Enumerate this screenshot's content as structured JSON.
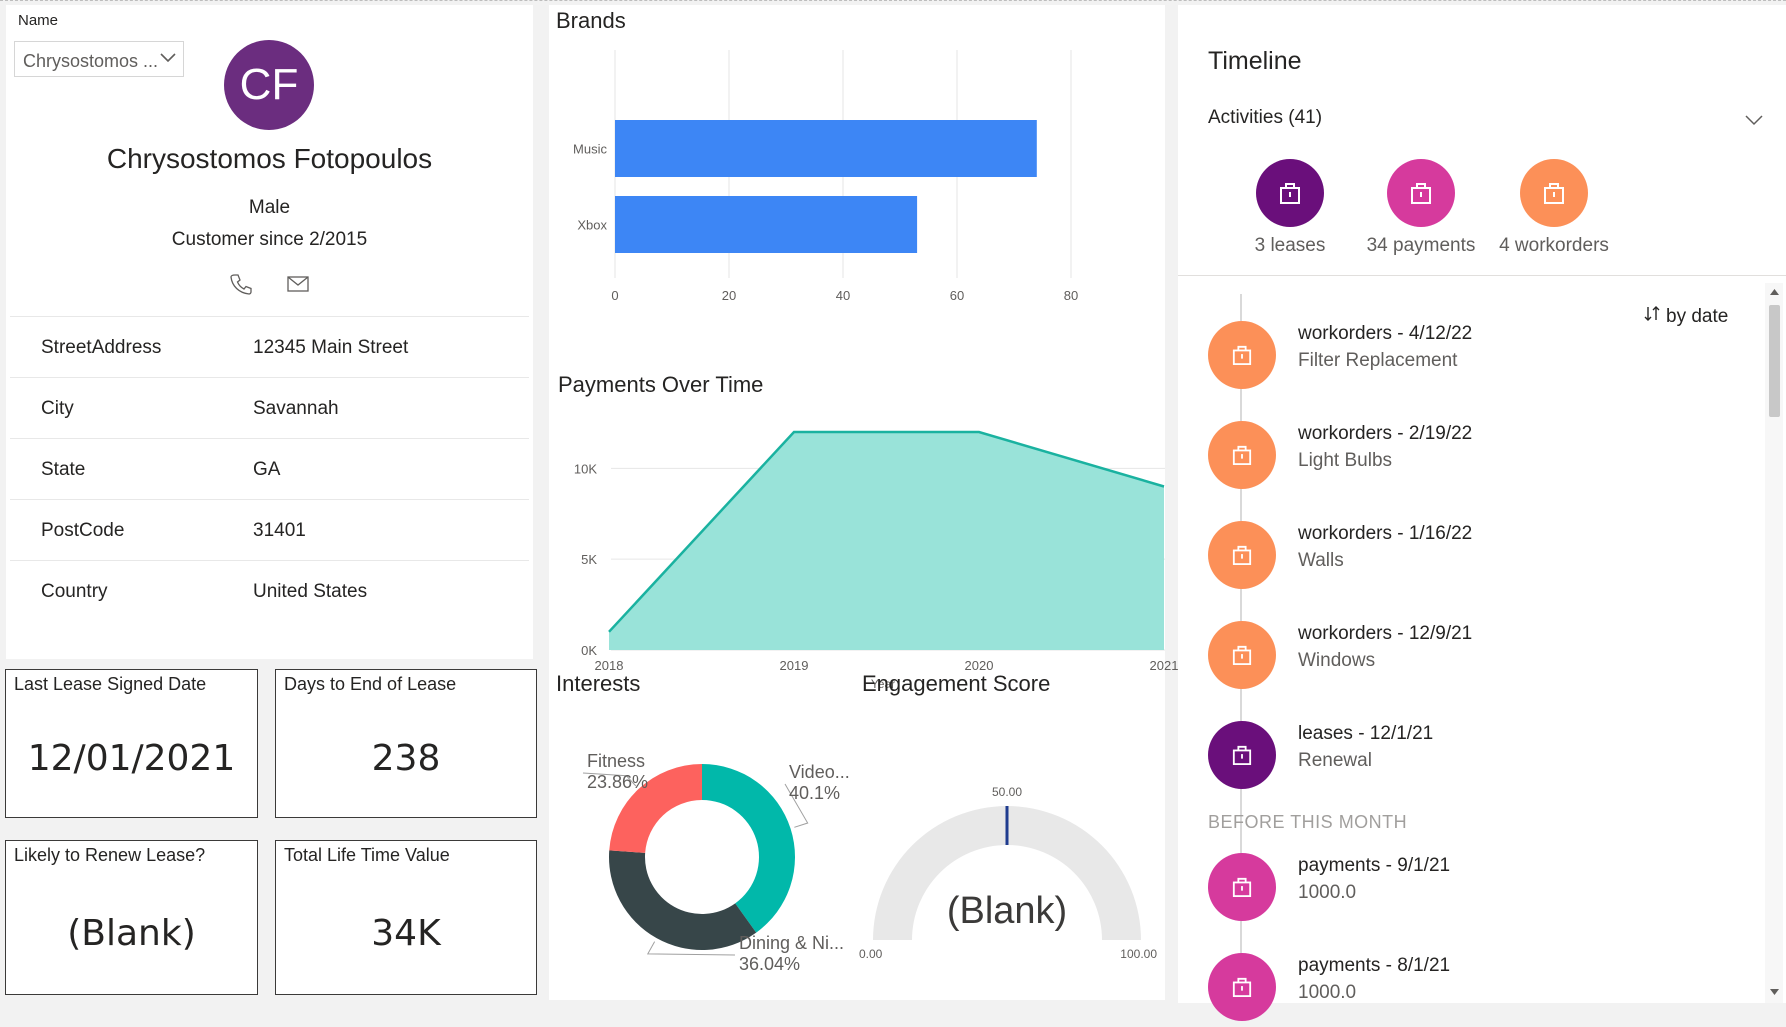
{
  "profile": {
    "slicer_title": "Name",
    "slicer_value": "Chrysostomos ...",
    "initials": "CF",
    "name": "Chrysostomos Fotopoulos",
    "gender": "Male",
    "customer_since": "Customer since 2/2015",
    "phone_icon": "phone-icon",
    "mail_icon": "mail-icon"
  },
  "address": [
    {
      "key": "StreetAddress",
      "value": "12345 Main Street"
    },
    {
      "key": "City",
      "value": "Savannah"
    },
    {
      "key": "State",
      "value": "GA"
    },
    {
      "key": "PostCode",
      "value": "31401"
    },
    {
      "key": "Country",
      "value": "United States"
    }
  ],
  "kpis": [
    {
      "label": "Last Lease Signed Date",
      "value": "12/01/2021"
    },
    {
      "label": "Days to End of Lease",
      "value": "238"
    },
    {
      "label": "Likely to Renew Lease?",
      "value": "(Blank)"
    },
    {
      "label": "Total Life Time Value",
      "value": "34K"
    }
  ],
  "brands": {
    "title": "Brands",
    "chart_data": {
      "type": "bar",
      "orientation": "horizontal",
      "categories": [
        "Music",
        "Xbox"
      ],
      "values": [
        74,
        53
      ],
      "xlim": [
        0,
        80
      ],
      "xticks": [
        "0",
        "20",
        "40",
        "60",
        "80"
      ],
      "color": "#3d86f5",
      "grid": true
    }
  },
  "payments": {
    "title": "Payments Over Time",
    "chart_data": {
      "type": "area",
      "x": [
        "2018",
        "2019",
        "2020",
        "2021"
      ],
      "values": [
        1000,
        12000,
        12000,
        9000
      ],
      "ylim": [
        0,
        12000
      ],
      "yticks": [
        "0K",
        "5K",
        "10K"
      ],
      "xlabel": "Year",
      "ylabel": "",
      "fill": "#99e3d9",
      "line": "#1ab2a0",
      "grid": true
    }
  },
  "interests": {
    "title": "Interests",
    "chart_data": {
      "type": "pie",
      "donut": true,
      "slices": [
        {
          "label": "Video...",
          "value": 40.1,
          "display": "40.1%",
          "color": "#01b8aa"
        },
        {
          "label": "Dining & Ni...",
          "value": 36.04,
          "display": "36.04%",
          "color": "#374649"
        },
        {
          "label": "Fitness",
          "value": 23.86,
          "display": "23.86%",
          "color": "#fd625e"
        }
      ]
    }
  },
  "engagement": {
    "title": "Engagement Score",
    "chart_data": {
      "type": "gauge",
      "min": 0,
      "max": 100,
      "target": 50,
      "value": null,
      "min_label": "0.00",
      "max_label": "100.00",
      "target_label": "50.00",
      "value_label": "(Blank)"
    }
  },
  "timeline": {
    "title": "Timeline",
    "activities_label": "Activities (41)",
    "categories": [
      {
        "label": "3 leases",
        "color": "#6a0f7b",
        "icon": "bag-icon"
      },
      {
        "label": "34 payments",
        "color": "#d63a9d",
        "icon": "bag-icon"
      },
      {
        "label": "4 workorders",
        "color": "#fc9058",
        "icon": "bag-icon"
      }
    ],
    "sort_label": "by date",
    "sort_icon": "sort-icon",
    "items": [
      {
        "title": "workorders - 4/12/22",
        "subtitle": "Filter Replacement",
        "type": "workorder"
      },
      {
        "title": "workorders - 2/19/22",
        "subtitle": "Light Bulbs",
        "type": "workorder"
      },
      {
        "title": "workorders - 1/16/22",
        "subtitle": "Walls",
        "type": "workorder"
      },
      {
        "title": "workorders - 12/9/21",
        "subtitle": "Windows",
        "type": "workorder"
      },
      {
        "title": "leases - 12/1/21",
        "subtitle": "Renewal",
        "type": "lease"
      }
    ],
    "section_label": "BEFORE THIS MONTH",
    "earlier_items": [
      {
        "title": "payments - 9/1/21",
        "subtitle": "1000.0",
        "type": "payment"
      },
      {
        "title": "payments - 8/1/21",
        "subtitle": "1000.0",
        "type": "payment"
      }
    ],
    "colors": {
      "workorder": "#fc9058",
      "lease": "#6a0f7b",
      "payment": "#d63a9d"
    }
  }
}
